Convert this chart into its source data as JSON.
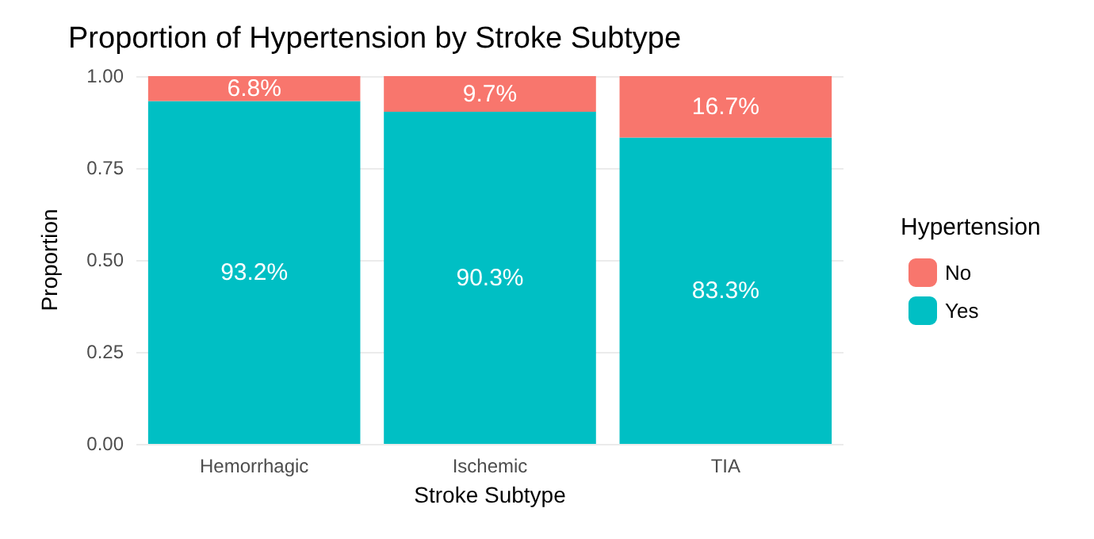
{
  "chart_data": {
    "type": "bar",
    "title": "Proportion of Hypertension by Stroke Subtype",
    "xlabel": "Stroke Subtype",
    "ylabel": "Proportion",
    "legend_title": "Hypertension",
    "categories": [
      "Hemorrhagic",
      "Ischemic",
      "TIA"
    ],
    "series": [
      {
        "name": "Yes",
        "color": "#00bfc4",
        "values": [
          0.932,
          0.903,
          0.833
        ],
        "value_labels": [
          "93.2%",
          "90.3%",
          "83.3%"
        ]
      },
      {
        "name": "No",
        "color": "#f8766d",
        "values": [
          0.068,
          0.097,
          0.167
        ],
        "value_labels": [
          "6.8%",
          "9.7%",
          "16.7%"
        ]
      }
    ],
    "stacked": true,
    "ylim": [
      0,
      1
    ],
    "yticks": [
      {
        "value": 0,
        "label": "0.00"
      },
      {
        "value": 0.25,
        "label": "0.25"
      },
      {
        "value": 0.5,
        "label": "0.50"
      },
      {
        "value": 0.75,
        "label": "0.75"
      },
      {
        "value": 1,
        "label": "1.00"
      }
    ],
    "grid": "y",
    "legend": "right"
  }
}
